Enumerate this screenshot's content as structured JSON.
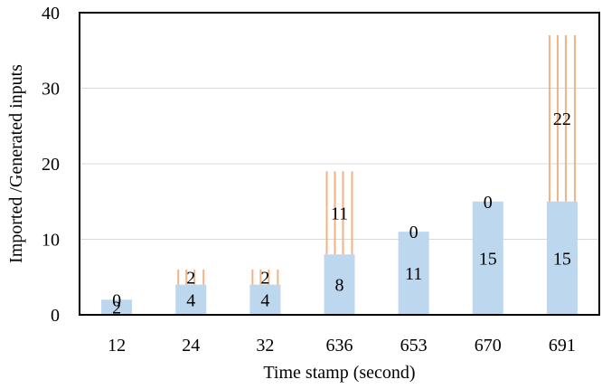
{
  "chart_data": {
    "type": "bar",
    "stacked": true,
    "xlabel": "Time stamp (second)",
    "ylabel": "Imported /Generated inputs",
    "ylim": [
      0,
      40
    ],
    "yticks": [
      0,
      10,
      20,
      30,
      40
    ],
    "grid": true,
    "categories": [
      "12",
      "24",
      "32",
      "636",
      "653",
      "670",
      "691"
    ],
    "series": [
      {
        "values": [
          2,
          4,
          4,
          8,
          11,
          15,
          15
        ],
        "color": "#bdd7ee",
        "fill": "solid"
      },
      {
        "values": [
          0,
          2,
          2,
          11,
          0,
          0,
          22
        ],
        "color": "#f4b183",
        "fill": "vertical-stripes"
      }
    ]
  }
}
